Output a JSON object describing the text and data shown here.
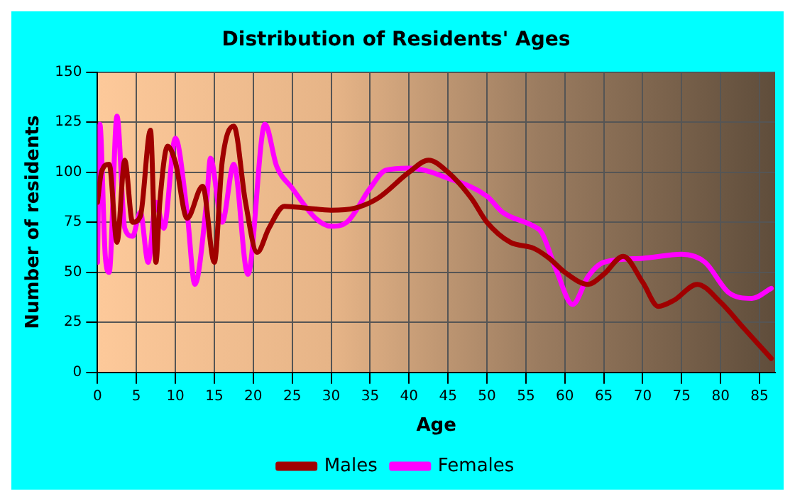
{
  "chart_data": {
    "type": "line",
    "title": "Distribution of Residents' Ages",
    "xlabel": "Age",
    "ylabel": "Number of residents",
    "xlim": [
      0,
      87
    ],
    "xticks": [
      0,
      5,
      10,
      15,
      20,
      25,
      30,
      35,
      40,
      45,
      50,
      55,
      60,
      65,
      70,
      75,
      80,
      85
    ],
    "ylim": [
      0,
      150
    ],
    "yticks": [
      0,
      25,
      50,
      75,
      100,
      125,
      150
    ],
    "grid": true,
    "legend": "bottom",
    "marker": "none",
    "line_style": "solid",
    "series": [
      {
        "name": "Males",
        "color": "#a00000",
        "x": [
          0,
          0.5,
          1.5,
          2.5,
          3.5,
          4.5,
          5.5,
          6.8,
          7.5,
          8,
          9,
          10,
          11.5,
          13.5,
          15,
          16,
          17.5,
          19,
          20.5,
          22,
          24,
          27,
          30,
          33,
          36,
          40,
          42.5,
          45,
          48,
          50,
          53,
          56,
          58,
          60,
          63,
          65,
          67.5,
          70,
          72,
          74,
          77,
          80,
          83,
          86.5
        ],
        "values": [
          85,
          100,
          104,
          65,
          106,
          75,
          78,
          121,
          55,
          85,
          113,
          105,
          77,
          93,
          55,
          105,
          123,
          85,
          60,
          72,
          83,
          82,
          81,
          82,
          87,
          100,
          106,
          100,
          87,
          75,
          65,
          62,
          57,
          50,
          44,
          49,
          58,
          45,
          33,
          36,
          44,
          35,
          22,
          7
        ]
      },
      {
        "name": "Females",
        "color": "#ff00ff",
        "x": [
          0,
          0.3,
          1,
          1.5,
          2.5,
          3.5,
          4.5,
          5.5,
          6.5,
          7.5,
          8.5,
          10,
          11.5,
          12.5,
          14,
          14.5,
          16,
          17.5,
          19.3,
          21.5,
          23,
          25,
          28,
          30,
          32,
          35,
          37,
          40,
          45,
          50,
          52,
          56,
          57,
          59,
          61,
          63,
          65,
          70,
          75,
          78,
          81,
          84,
          86.5
        ],
        "values": [
          55,
          124,
          58,
          50,
          128,
          72,
          68,
          80,
          55,
          85,
          72,
          117,
          80,
          44,
          85,
          107,
          75,
          104,
          49,
          124,
          103,
          92,
          77,
          73,
          75,
          92,
          101,
          102,
          97,
          88,
          80,
          73,
          70,
          50,
          34,
          48,
          55,
          57,
          59,
          55,
          40,
          37,
          42
        ]
      }
    ]
  }
}
